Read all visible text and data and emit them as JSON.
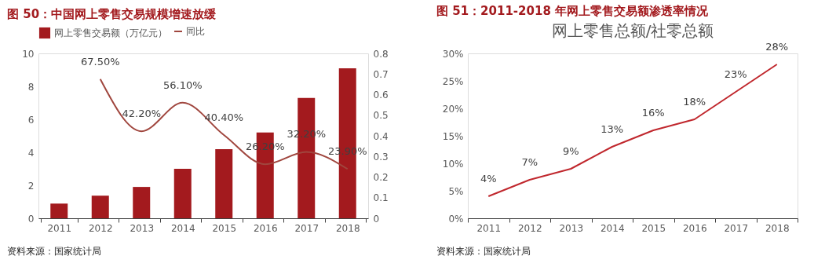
{
  "chart_data": [
    {
      "type": "bar",
      "title": "图 50：中国网上零售交易规模增速放缓",
      "categories": [
        "2011",
        "2012",
        "2013",
        "2014",
        "2015",
        "2016",
        "2017",
        "2018"
      ],
      "series": [
        {
          "name": "网上零售交易额（万亿元）",
          "color": "#a31a1e",
          "values": [
            0.89,
            1.37,
            1.9,
            3.0,
            4.19,
            5.2,
            7.3,
            9.1
          ]
        },
        {
          "name": "同比",
          "type": "line",
          "axis": "y2",
          "color": "#a0463e",
          "values": [
            null,
            0.675,
            0.422,
            0.561,
            0.404,
            0.262,
            0.322,
            0.239
          ],
          "value_labels": [
            null,
            "67.50%",
            "42.20%",
            "56.10%",
            "40.40%",
            "26.20%",
            "32.20%",
            "23.90%"
          ]
        }
      ],
      "ylim": [
        0,
        10
      ],
      "yticks": [
        0,
        2,
        4,
        6,
        8,
        10
      ],
      "y2lim": [
        0,
        0.8
      ],
      "y2ticks": [
        0,
        0.1,
        0.2,
        0.3,
        0.4,
        0.5,
        0.6,
        0.7,
        0.8
      ],
      "legend": "top",
      "grid": false,
      "annotations": [
        "资料来源：国家统计局"
      ]
    },
    {
      "type": "line",
      "title": "图 51：2011-2018 年网上零售交易额渗透率情况",
      "subtitle": "网上零售总额/社零总额",
      "categories": [
        "2011",
        "2012",
        "2013",
        "2014",
        "2015",
        "2016",
        "2017",
        "2018"
      ],
      "color": "#c0272d",
      "values": [
        4,
        7,
        9,
        13,
        16,
        18,
        23,
        28
      ],
      "value_labels": [
        "4%",
        "7%",
        "9%",
        "13%",
        "16%",
        "18%",
        "23%",
        "28%"
      ],
      "ylim": [
        0,
        30
      ],
      "yticks": [
        {
          "value": 0,
          "label": "0%"
        },
        {
          "value": 5,
          "label": "5%"
        },
        {
          "value": 10,
          "label": "10%"
        },
        {
          "value": 15,
          "label": "15%"
        },
        {
          "value": 20,
          "label": "20%"
        },
        {
          "value": 25,
          "label": "25%"
        },
        {
          "value": 30,
          "label": "30%"
        }
      ],
      "grid": false,
      "legend": false,
      "annotations": [
        "资料来源：国家统计局"
      ]
    }
  ]
}
